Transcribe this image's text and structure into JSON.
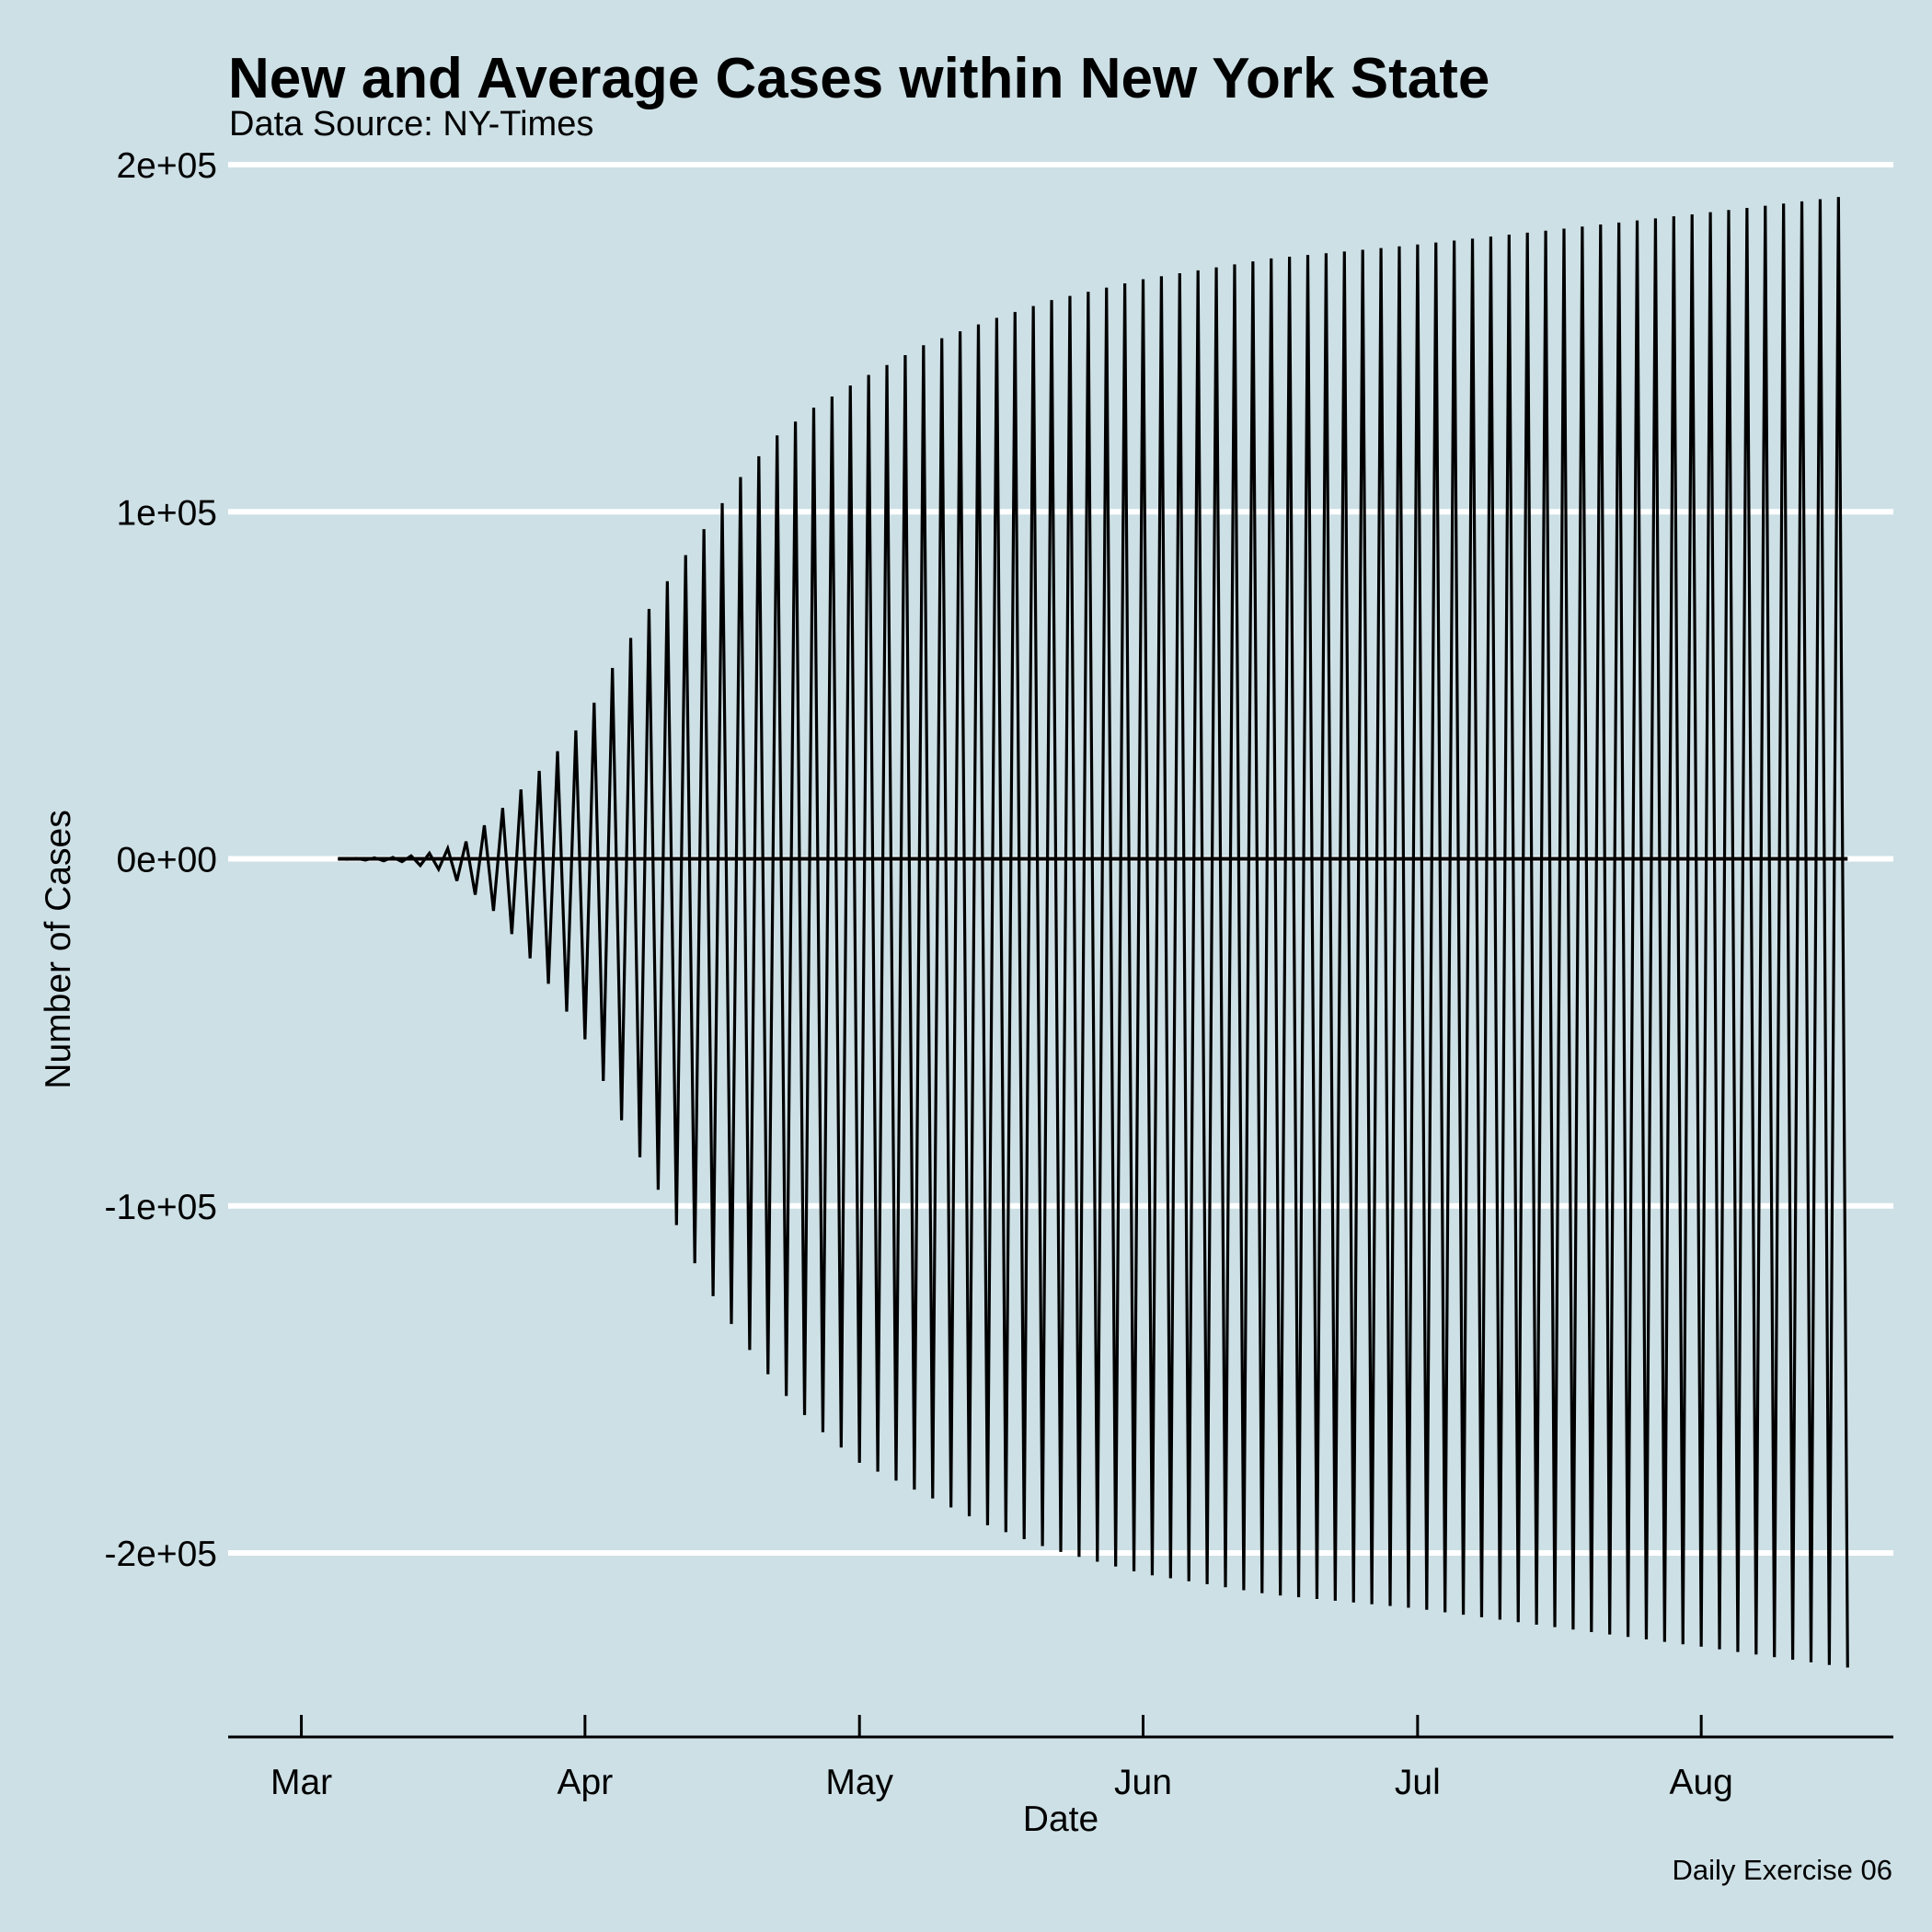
{
  "chart_data": {
    "type": "line",
    "title": "New and Average Cases within New York State",
    "subtitle": "Data Source: NY-Times",
    "caption": "Daily Exercise 06",
    "xlabel": "Date",
    "ylabel": "Number of Cases",
    "grid": "horizontal major gridlines only",
    "legend": "none",
    "colors": {
      "background": "#cde0e6",
      "line": "#000000",
      "grid": "#ffffff"
    },
    "x_axis": {
      "type": "date",
      "range": [
        "2020-02-22",
        "2020-08-22"
      ],
      "ticks": [
        {
          "date": "2020-03-01",
          "label": "Mar"
        },
        {
          "date": "2020-04-01",
          "label": "Apr"
        },
        {
          "date": "2020-05-01",
          "label": "May"
        },
        {
          "date": "2020-06-01",
          "label": "Jun"
        },
        {
          "date": "2020-07-01",
          "label": "Jul"
        },
        {
          "date": "2020-08-01",
          "label": "Aug"
        }
      ]
    },
    "y_axis": {
      "range": [
        -253000,
        213000
      ],
      "ticks": [
        {
          "value": 200000,
          "label": "2e+05"
        },
        {
          "value": 100000,
          "label": "1e+05"
        },
        {
          "value": 0,
          "label": "0e+00"
        },
        {
          "value": -100000,
          "label": "-1e+05"
        },
        {
          "value": -200000,
          "label": "-2e+05"
        }
      ]
    },
    "series": [
      {
        "role": "daily oscillating series",
        "first_date": "2020-03-05",
        "last_date": "2020-08-17",
        "envelope_upper": [
          {
            "date": "2020-03-05",
            "value": 0
          },
          {
            "date": "2020-03-12",
            "value": 500
          },
          {
            "date": "2020-03-16",
            "value": 2000
          },
          {
            "date": "2020-03-19",
            "value": 5000
          },
          {
            "date": "2020-03-22",
            "value": 12000
          },
          {
            "date": "2020-03-25",
            "value": 20000
          },
          {
            "date": "2020-03-28",
            "value": 28000
          },
          {
            "date": "2020-04-01",
            "value": 40000
          },
          {
            "date": "2020-04-04",
            "value": 55000
          },
          {
            "date": "2020-04-07",
            "value": 68000
          },
          {
            "date": "2020-04-10",
            "value": 80000
          },
          {
            "date": "2020-04-14",
            "value": 95000
          },
          {
            "date": "2020-04-18",
            "value": 110000
          },
          {
            "date": "2020-04-22",
            "value": 122000
          },
          {
            "date": "2020-04-26",
            "value": 130000
          },
          {
            "date": "2020-05-01",
            "value": 138000
          },
          {
            "date": "2020-05-08",
            "value": 148000
          },
          {
            "date": "2020-05-15",
            "value": 155000
          },
          {
            "date": "2020-05-22",
            "value": 161000
          },
          {
            "date": "2020-06-01",
            "value": 167000
          },
          {
            "date": "2020-06-15",
            "value": 173000
          },
          {
            "date": "2020-07-01",
            "value": 177000
          },
          {
            "date": "2020-07-15",
            "value": 181000
          },
          {
            "date": "2020-08-01",
            "value": 186000
          },
          {
            "date": "2020-08-17",
            "value": 191000
          }
        ],
        "envelope_lower": [
          {
            "date": "2020-03-05",
            "value": 0
          },
          {
            "date": "2020-03-12",
            "value": -800
          },
          {
            "date": "2020-03-16",
            "value": -3000
          },
          {
            "date": "2020-03-19",
            "value": -8000
          },
          {
            "date": "2020-03-22",
            "value": -15000
          },
          {
            "date": "2020-03-25",
            "value": -25000
          },
          {
            "date": "2020-03-28",
            "value": -36000
          },
          {
            "date": "2020-04-01",
            "value": -52000
          },
          {
            "date": "2020-04-04",
            "value": -70000
          },
          {
            "date": "2020-04-07",
            "value": -86000
          },
          {
            "date": "2020-04-10",
            "value": -100000
          },
          {
            "date": "2020-04-14",
            "value": -122000
          },
          {
            "date": "2020-04-18",
            "value": -138000
          },
          {
            "date": "2020-04-22",
            "value": -152000
          },
          {
            "date": "2020-04-26",
            "value": -163000
          },
          {
            "date": "2020-05-01",
            "value": -174000
          },
          {
            "date": "2020-05-08",
            "value": -183000
          },
          {
            "date": "2020-05-15",
            "value": -192000
          },
          {
            "date": "2020-05-22",
            "value": -199000
          },
          {
            "date": "2020-06-01",
            "value": -206000
          },
          {
            "date": "2020-06-15",
            "value": -212000
          },
          {
            "date": "2020-07-01",
            "value": -216000
          },
          {
            "date": "2020-07-15",
            "value": -221000
          },
          {
            "date": "2020-08-01",
            "value": -227000
          },
          {
            "date": "2020-08-17",
            "value": -233000
          }
        ]
      },
      {
        "role": "average (flat line)",
        "first_date": "2020-03-05",
        "last_date": "2020-08-17",
        "value": 0
      }
    ]
  }
}
